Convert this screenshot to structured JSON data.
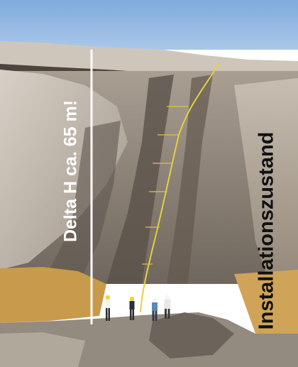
{
  "labels": {
    "height": "Delta H ca. 65 m!",
    "state": "Installationszustand"
  },
  "colors": {
    "sky": "#8fb6e2",
    "sand_light": "#c9bfb3",
    "sand_dark": "#776d64",
    "straw": "#c89a4b",
    "cable": "#e6cf3a",
    "marker_line": "#ffffff"
  },
  "figures": [
    {
      "helmet": "yellow",
      "shirt": "white"
    },
    {
      "helmet": "yellow",
      "shirt": "dark"
    },
    {
      "helmet": "white",
      "shirt": "blue"
    },
    {
      "helmet": "white",
      "shirt": "white"
    }
  ]
}
